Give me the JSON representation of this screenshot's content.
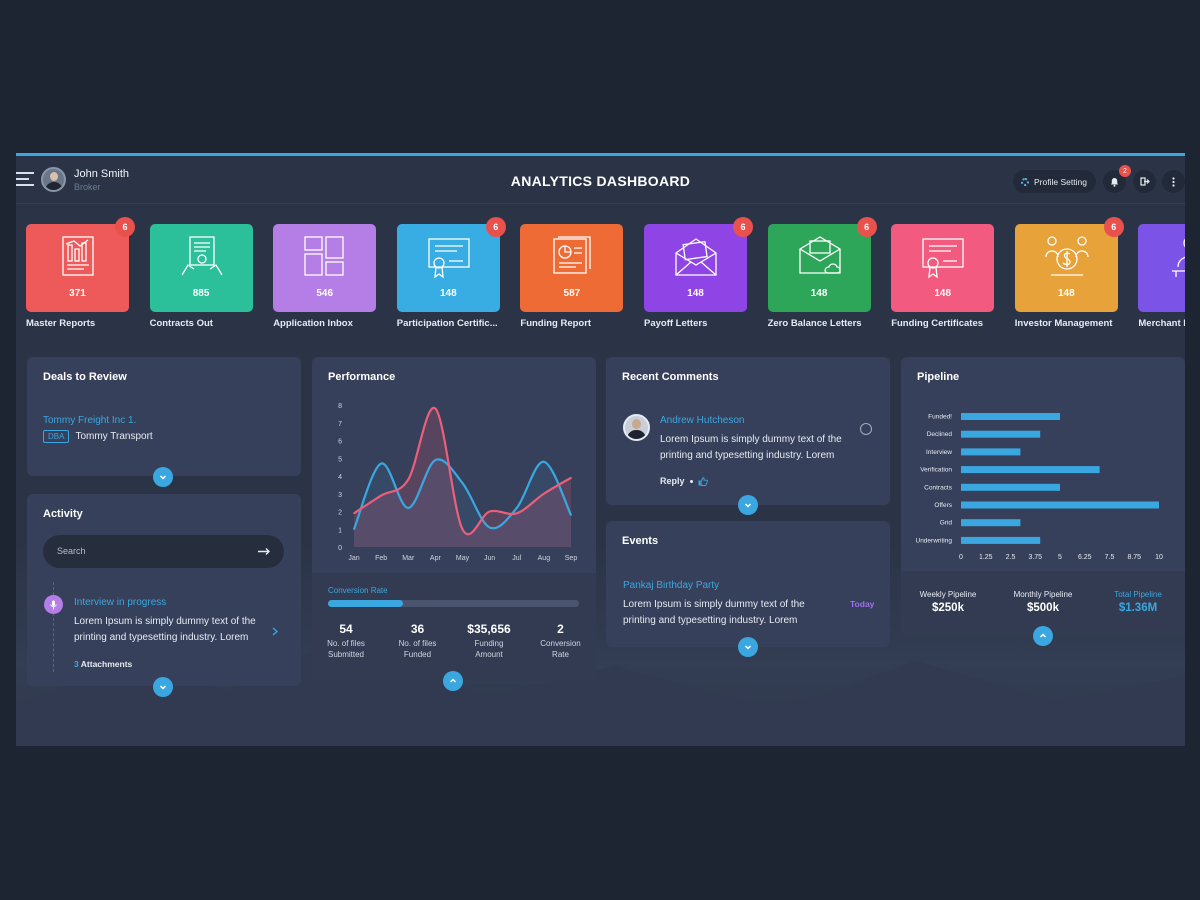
{
  "header": {
    "title": "ANALYTICS DASHBOARD",
    "user_name": "John Smith",
    "user_role": "Broker",
    "profile_setting": "Profile Setting",
    "notification_count": "2"
  },
  "tiles": [
    {
      "label": "Master Reports",
      "count": "371",
      "badge": "6",
      "color": "#ee5a5a",
      "icon": "report-icon"
    },
    {
      "label": "Contracts Out",
      "count": "885",
      "badge": "",
      "color": "#2bbf9a",
      "icon": "contract-icon"
    },
    {
      "label": "Application Inbox",
      "count": "546",
      "badge": "",
      "color": "#b57de6",
      "icon": "grid-icon"
    },
    {
      "label": "Participation Certific...",
      "count": "148",
      "badge": "6",
      "color": "#38ade3",
      "icon": "certificate-icon"
    },
    {
      "label": "Funding Report",
      "count": "587",
      "badge": "",
      "color": "#ef6b35",
      "icon": "pie-report-icon"
    },
    {
      "label": "Payoff Letters",
      "count": "148",
      "badge": "6",
      "color": "#8f45e6",
      "icon": "envelope-icon"
    },
    {
      "label": "Zero Balance Letters",
      "count": "148",
      "badge": "6",
      "color": "#2ea65a",
      "icon": "mail-cloud-icon"
    },
    {
      "label": "Funding Certificates",
      "count": "148",
      "badge": "",
      "color": "#f35a7f",
      "icon": "certificate-icon"
    },
    {
      "label": "Investor Management",
      "count": "148",
      "badge": "6",
      "color": "#e7a23a",
      "icon": "investor-icon"
    },
    {
      "label": "Merchant I",
      "count": "",
      "badge": "",
      "color": "#7b53e6",
      "icon": "merchant-icon"
    }
  ],
  "deals": {
    "title": "Deals to Review",
    "company": "Tommy Freight Inc 1.",
    "dba_tag": "DBA",
    "dba_name": "Tommy Transport"
  },
  "activity": {
    "title": "Activity",
    "search_placeholder": "Search",
    "item_title": "Interview in progress",
    "item_text_1": "Lorem Ipsum is simply dummy text of the",
    "item_text_2": "printing and typesetting industry. Lorem",
    "attachments_count": "3",
    "attachments_label": "Attachments"
  },
  "performance": {
    "title": "Performance",
    "conversion_label": "Conversion Rate",
    "conversion_progress": 0.3,
    "stats": [
      {
        "value": "54",
        "label1": "No. of files",
        "label2": "Submitted"
      },
      {
        "value": "36",
        "label1": "No. of files",
        "label2": "Funded"
      },
      {
        "value": "$35,656",
        "label1": "Funding",
        "label2": "Amount"
      },
      {
        "value": "2",
        "label1": "Conversion",
        "label2": "Rate"
      }
    ]
  },
  "comments": {
    "title": "Recent Comments",
    "author": "Andrew Hutcheson",
    "text_1": "Lorem Ipsum is simply dummy text of the",
    "text_2": "printing and typesetting industry. Lorem",
    "reply": "Reply"
  },
  "events": {
    "title": "Events",
    "event_title": "Pankaj Birthday Party",
    "event_when": "Today",
    "text_1": "Lorem Ipsum is simply dummy text of the",
    "text_2": "printing and typesetting industry. Lorem"
  },
  "pipeline": {
    "title": "Pipeline",
    "summary": [
      {
        "label": "Weekly Pipeline",
        "value": "$250k",
        "highlight": false
      },
      {
        "label": "Monthly Pipeline",
        "value": "$500k",
        "highlight": false
      },
      {
        "label": "Total Pipeline",
        "value": "$1.36M",
        "highlight": true
      }
    ]
  },
  "chart_data": [
    {
      "type": "line",
      "title": "Performance",
      "x": [
        "Jan",
        "Feb",
        "Mar",
        "Apr",
        "May",
        "Jun",
        "Jul",
        "Aug",
        "Sep"
      ],
      "ylim": [
        0,
        8
      ],
      "yticks": [
        "0",
        "1",
        "2",
        "3",
        "4",
        "5",
        "6",
        "7",
        "8"
      ],
      "series": [
        {
          "values": [
            1.0,
            4.7,
            2.2,
            4.9,
            3.6,
            1.1,
            2.2,
            4.8,
            1.8
          ],
          "color": "#3ba7e0"
        },
        {
          "values": [
            1.9,
            2.9,
            3.8,
            7.8,
            1.0,
            2.0,
            1.9,
            3.0,
            3.9
          ],
          "color": "#ec5f7a"
        }
      ],
      "grid": false
    },
    {
      "type": "bar",
      "orientation": "horizontal",
      "title": "Pipeline",
      "categories": [
        "Funded!",
        "Declined",
        "Interview",
        "Verification",
        "Contracts",
        "Offers",
        "Grid",
        "Underwriting"
      ],
      "values": [
        5,
        4,
        3,
        7,
        5,
        10,
        3,
        4
      ],
      "xlim": [
        0,
        10
      ],
      "xticks": [
        "0",
        "1.25",
        "2.5",
        "3.75",
        "5",
        "6.25",
        "7.5",
        "8.75",
        "10"
      ],
      "color": "#3ba7e0",
      "grid": false
    }
  ]
}
